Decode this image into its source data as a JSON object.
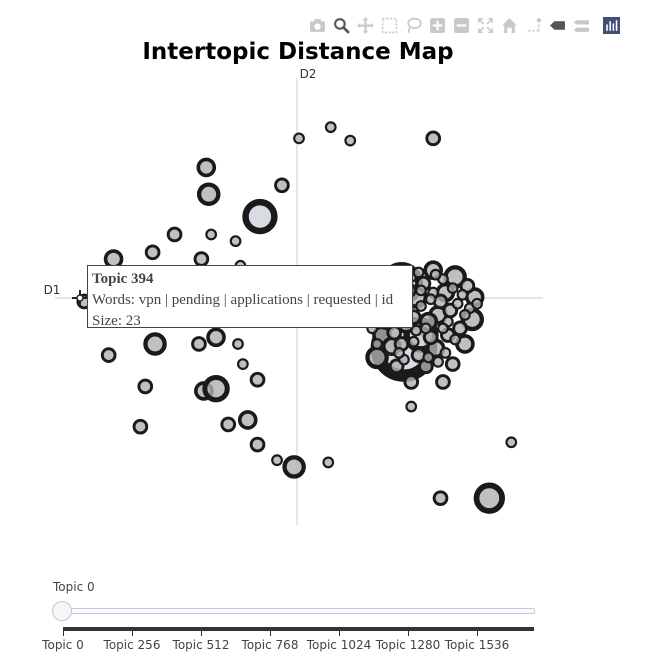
{
  "toolbar": {
    "buttons": [
      {
        "name": "camera-icon",
        "tooltip": "Download plot as a png"
      },
      {
        "name": "zoom-icon",
        "tooltip": "Zoom"
      },
      {
        "name": "pan-icon",
        "tooltip": "Pan"
      },
      {
        "name": "box-select-icon",
        "tooltip": "Box Select"
      },
      {
        "name": "lasso-select-icon",
        "tooltip": "Lasso Select"
      },
      {
        "name": "zoom-in-icon",
        "tooltip": "Zoom in"
      },
      {
        "name": "zoom-out-icon",
        "tooltip": "Zoom out"
      },
      {
        "name": "autoscale-icon",
        "tooltip": "Autoscale"
      },
      {
        "name": "reset-axes-icon",
        "tooltip": "Reset axes"
      },
      {
        "name": "spike-lines-icon",
        "tooltip": "Toggle Spike Lines"
      },
      {
        "name": "hover-closest-icon",
        "tooltip": "Show closest data on hover"
      },
      {
        "name": "hover-compare-icon",
        "tooltip": "Compare data on hover"
      },
      {
        "name": "plotly-logo-icon",
        "tooltip": "Produced with Plotly"
      }
    ]
  },
  "tooltip": {
    "title": "Topic 394",
    "words": "Words: vpn | pending | applications | requested | id",
    "size": "Size: 23"
  },
  "slider": {
    "current_label": "Topic 0",
    "ticks": [
      "Topic 0",
      "Topic 256",
      "Topic 512",
      "Topic 768",
      "Topic 1024",
      "Topic 1280",
      "Topic 1536"
    ]
  },
  "chart_data": {
    "type": "scatter",
    "title": "Intertopic Distance Map",
    "xlabel": "D1",
    "ylabel": "D2",
    "xlim": [
      -10,
      10
    ],
    "ylim": [
      -10,
      10
    ],
    "colors": {
      "fill": "#b0b0b0",
      "highlight": "#d0d5dc",
      "stroke": "#1a1a1a"
    },
    "points": [
      {
        "x": 0.0,
        "y": 7.3,
        "s": 3
      },
      {
        "x": 1.3,
        "y": 7.8,
        "s": 3
      },
      {
        "x": 2.1,
        "y": 7.2,
        "s": 3
      },
      {
        "x": 5.5,
        "y": 7.3,
        "s": 4
      },
      {
        "x": -3.8,
        "y": 6.0,
        "s": 5
      },
      {
        "x": -0.7,
        "y": 5.2,
        "s": 4
      },
      {
        "x": -3.7,
        "y": 4.8,
        "s": 6
      },
      {
        "x": -1.6,
        "y": 3.8,
        "s": 9
      },
      {
        "x": -5.1,
        "y": 3.0,
        "s": 4
      },
      {
        "x": -3.6,
        "y": 3.0,
        "s": 3
      },
      {
        "x": -2.6,
        "y": 2.7,
        "s": 3
      },
      {
        "x": -6.0,
        "y": 2.2,
        "s": 4
      },
      {
        "x": -7.6,
        "y": 1.9,
        "s": 5
      },
      {
        "x": -4.0,
        "y": 1.9,
        "s": 4
      },
      {
        "x": -2.4,
        "y": 1.6,
        "s": 3
      },
      {
        "x": -2.8,
        "y": 1.1,
        "s": 3
      },
      {
        "x": -8.8,
        "y": 0.0,
        "s": 4
      },
      {
        "x": -7.8,
        "y": -2.4,
        "s": 4
      },
      {
        "x": -5.9,
        "y": -1.9,
        "s": 6
      },
      {
        "x": -4.1,
        "y": -1.9,
        "s": 4
      },
      {
        "x": -3.4,
        "y": -1.6,
        "s": 5
      },
      {
        "x": -2.5,
        "y": -1.9,
        "s": 3
      },
      {
        "x": -2.3,
        "y": -2.8,
        "s": 3
      },
      {
        "x": -1.7,
        "y": -3.5,
        "s": 4
      },
      {
        "x": -6.3,
        "y": -3.8,
        "s": 4
      },
      {
        "x": -3.9,
        "y": -4.0,
        "s": 5
      },
      {
        "x": -3.4,
        "y": -3.9,
        "s": 7
      },
      {
        "x": -6.5,
        "y": -5.6,
        "s": 4
      },
      {
        "x": -2.9,
        "y": -5.5,
        "s": 4
      },
      {
        "x": -2.1,
        "y": -5.3,
        "s": 5
      },
      {
        "x": -1.7,
        "y": -6.4,
        "s": 4
      },
      {
        "x": -0.9,
        "y": -7.1,
        "s": 3
      },
      {
        "x": -0.2,
        "y": -7.4,
        "s": 6
      },
      {
        "x": 1.2,
        "y": -7.2,
        "s": 3
      },
      {
        "x": 4.6,
        "y": -4.7,
        "s": 3
      },
      {
        "x": 8.7,
        "y": -6.3,
        "s": 3
      },
      {
        "x": 5.8,
        "y": -8.8,
        "s": 4
      },
      {
        "x": 7.8,
        "y": -8.8,
        "s": 8
      },
      {
        "x": 4.3,
        "y": -2.1,
        "s": 17
      },
      {
        "x": 3.2,
        "y": -2.5,
        "s": 6
      },
      {
        "x": 4.2,
        "y": 0.8,
        "s": 11
      },
      {
        "x": 5.0,
        "y": -1.5,
        "s": 9
      },
      {
        "x": 6.4,
        "y": 1.1,
        "s": 6
      },
      {
        "x": 7.2,
        "y": 0.2,
        "s": 5
      },
      {
        "x": 7.1,
        "y": -0.8,
        "s": 6
      },
      {
        "x": 6.8,
        "y": -1.9,
        "s": 5
      },
      {
        "x": 5.5,
        "y": 1.4,
        "s": 5
      },
      {
        "x": 6.3,
        "y": -2.8,
        "s": 4
      },
      {
        "x": 5.9,
        "y": -3.6,
        "s": 4
      },
      {
        "x": 5.2,
        "y": -2.9,
        "s": 4
      },
      {
        "x": 4.6,
        "y": -3.6,
        "s": 4
      },
      {
        "x": 4.0,
        "y": -2.9,
        "s": 4
      },
      {
        "x": 3.4,
        "y": -1.5,
        "s": 5
      },
      {
        "x": 3.0,
        "y": -0.6,
        "s": 4
      },
      {
        "x": 5.7,
        "y": -0.6,
        "s": 5
      },
      {
        "x": 6.0,
        "y": 0.4,
        "s": 5
      },
      {
        "x": 4.8,
        "y": 0.2,
        "s": 6
      },
      {
        "x": 5.3,
        "y": -0.9,
        "s": 5
      },
      {
        "x": 6.6,
        "y": -1.2,
        "s": 4
      },
      {
        "x": 4.1,
        "y": -0.4,
        "s": 5
      },
      {
        "x": 3.6,
        "y": 0.3,
        "s": 4
      },
      {
        "x": 4.4,
        "y": -1.0,
        "s": 5
      },
      {
        "x": 5.6,
        "y": -2.1,
        "s": 5
      },
      {
        "x": 6.1,
        "y": -1.5,
        "s": 4
      },
      {
        "x": 4.9,
        "y": -2.4,
        "s": 4
      },
      {
        "x": 3.8,
        "y": -2.0,
        "s": 5
      },
      {
        "x": 5.1,
        "y": 0.8,
        "s": 4
      },
      {
        "x": 6.9,
        "y": 0.7,
        "s": 4
      },
      {
        "x": 4.5,
        "y": 0.5,
        "s": 4
      },
      {
        "x": 3.3,
        "y": -0.2,
        "s": 4
      },
      {
        "x": 5.8,
        "y": 0.0,
        "s": 4
      },
      {
        "x": 6.2,
        "y": -0.4,
        "s": 4
      },
      {
        "x": 4.7,
        "y": -0.7,
        "s": 4
      },
      {
        "x": 3.9,
        "y": -1.4,
        "s": 4
      },
      {
        "x": 5.4,
        "y": -1.6,
        "s": 4
      },
      {
        "x": 4.2,
        "y": -1.9,
        "s": 4
      },
      {
        "x": 6.5,
        "y": -0.1,
        "s": 3
      },
      {
        "x": 7.0,
        "y": -0.3,
        "s": 3
      },
      {
        "x": 3.5,
        "y": -1.0,
        "s": 3
      },
      {
        "x": 5.0,
        "y": -0.2,
        "s": 3
      },
      {
        "x": 4.6,
        "y": 1.1,
        "s": 3
      },
      {
        "x": 5.9,
        "y": 1.0,
        "s": 3
      },
      {
        "x": 6.7,
        "y": 0.3,
        "s": 3
      },
      {
        "x": 4.3,
        "y": -2.6,
        "s": 3
      },
      {
        "x": 5.3,
        "y": -2.5,
        "s": 3
      },
      {
        "x": 3.2,
        "y": -1.9,
        "s": 3
      },
      {
        "x": 6.0,
        "y": -2.3,
        "s": 3
      },
      {
        "x": 4.0,
        "y": 0.1,
        "s": 3
      },
      {
        "x": 5.5,
        "y": 0.4,
        "s": 3
      },
      {
        "x": 6.3,
        "y": 0.6,
        "s": 3
      },
      {
        "x": 4.9,
        "y": 1.3,
        "s": 3
      },
      {
        "x": 5.2,
        "y": -1.2,
        "s": 3
      },
      {
        "x": 3.7,
        "y": -0.7,
        "s": 3
      },
      {
        "x": 6.4,
        "y": -1.7,
        "s": 3
      },
      {
        "x": 5.7,
        "y": -2.7,
        "s": 3
      },
      {
        "x": 4.1,
        "y": -2.3,
        "s": 3
      },
      {
        "x": 5.0,
        "y": 0.5,
        "s": 3
      },
      {
        "x": 4.4,
        "y": 0.9,
        "s": 3
      },
      {
        "x": 6.8,
        "y": -0.6,
        "s": 3
      },
      {
        "x": 3.4,
        "y": 0.6,
        "s": 3
      },
      {
        "x": 5.6,
        "y": 1.2,
        "s": 3
      },
      {
        "x": 4.7,
        "y": -1.8,
        "s": 3
      },
      {
        "x": 6.1,
        "y": -0.9,
        "s": 3
      },
      {
        "x": 5.9,
        "y": -1.2,
        "s": 3
      },
      {
        "x": 4.2,
        "y": 1.3,
        "s": 3
      },
      {
        "x": 3.0,
        "y": -1.2,
        "s": 3
      },
      {
        "x": 7.3,
        "y": -0.1,
        "s": 3
      },
      {
        "x": 5.4,
        "y": 0.1,
        "s": 3
      },
      {
        "x": 4.8,
        "y": -1.3,
        "s": 3
      }
    ]
  }
}
